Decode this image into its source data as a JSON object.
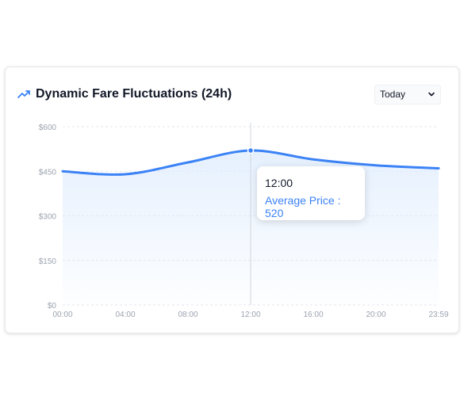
{
  "header": {
    "title": "Dynamic Fare Fluctuations (24h)",
    "icon": "trending-up-icon"
  },
  "range_select": {
    "selected": "Today"
  },
  "tooltip": {
    "label": "12:00",
    "series_name": "Average Price",
    "value": 520,
    "text": "Average Price : 520"
  },
  "colors": {
    "line": "#3b82f6",
    "area_top": "#dbeafe",
    "grid": "#e5e7eb",
    "axis_text": "#9ca3af",
    "cursor": "#d1d5db"
  },
  "chart_data": {
    "type": "area",
    "x": [
      "00:00",
      "04:00",
      "08:00",
      "12:00",
      "16:00",
      "20:00",
      "23:59"
    ],
    "series": [
      {
        "values": [
          450,
          440,
          480,
          520,
          490,
          470,
          460
        ]
      }
    ],
    "ylim": [
      0,
      600
    ],
    "yticks": [
      "$0",
      "$150",
      "$300",
      "$450",
      "$600"
    ],
    "ytick_values": [
      0,
      150,
      300,
      450,
      600
    ],
    "xlabel": "",
    "ylabel": "",
    "grid": true,
    "highlight_index": 3
  }
}
